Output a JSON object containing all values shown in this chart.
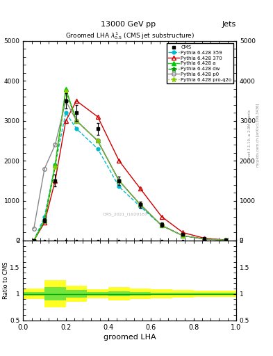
{
  "title_top": "13000 GeV pp",
  "title_right": "Jets",
  "plot_title": "Groomed LHA $\\lambda^{1}_{0.5}$ (CMS jet substructure)",
  "xlabel": "groomed LHA",
  "watermark": "CMS_2021_I1920187",
  "xbins": [
    0.0,
    0.1,
    0.2,
    0.3,
    0.4,
    0.5,
    0.6,
    0.7,
    0.8,
    0.9,
    1.0
  ],
  "cms_x": [
    0.05,
    0.1,
    0.15,
    0.2,
    0.25,
    0.35,
    0.45,
    0.55,
    0.65,
    0.75,
    0.85,
    0.95
  ],
  "cms_y": [
    0.0,
    500,
    1500,
    3500,
    3200,
    2800,
    1500,
    900,
    400,
    150,
    50,
    20
  ],
  "cms_yerr": [
    0.0,
    50,
    150,
    200,
    200,
    150,
    100,
    80,
    50,
    20,
    10,
    5
  ],
  "p359_y": [
    0.0,
    600,
    1900,
    3200,
    2800,
    2300,
    1350,
    850,
    380,
    120,
    40,
    10
  ],
  "p370_y": [
    0.0,
    450,
    1500,
    3000,
    3500,
    3100,
    2000,
    1300,
    600,
    200,
    60,
    15
  ],
  "pa_y": [
    0.0,
    500,
    1900,
    3800,
    3000,
    2500,
    1500,
    900,
    380,
    120,
    40,
    10
  ],
  "pdw_y": [
    0.0,
    500,
    1850,
    3750,
    3000,
    2500,
    1500,
    900,
    380,
    120,
    40,
    10
  ],
  "pp0_y": [
    300,
    1800,
    2400,
    3500,
    3000,
    2500,
    1500,
    900,
    380,
    120,
    40,
    10
  ],
  "pproq2o_y": [
    0.0,
    500,
    1850,
    3750,
    3000,
    2500,
    1500,
    900,
    380,
    120,
    40,
    10
  ],
  "ylim": [
    0,
    5000
  ],
  "yticks": [
    0,
    1000,
    2000,
    3000,
    4000,
    5000
  ],
  "ytick_labels": [
    "0",
    "1000",
    "2000",
    "3000",
    "4000",
    "5000"
  ],
  "ratio_ylim": [
    0.5,
    2.0
  ],
  "ratio_yticks": [
    0.5,
    1.0,
    1.5,
    2.0
  ],
  "ratio_ytick_labels": [
    "0.5",
    "1",
    "1.5",
    "2"
  ],
  "colors": {
    "cms": "#000000",
    "p359": "#00bbcc",
    "p370": "#cc0000",
    "pa": "#00cc00",
    "pdw": "#009900",
    "pp0": "#888888",
    "pproq2o": "#88cc00"
  },
  "yellow_lo": [
    0.9,
    0.75,
    0.85,
    0.92,
    0.88,
    0.9,
    0.92,
    0.93,
    0.94,
    0.94,
    0.94,
    0.94
  ],
  "yellow_hi": [
    1.1,
    1.25,
    1.15,
    1.08,
    1.12,
    1.1,
    1.08,
    1.07,
    1.06,
    1.06,
    1.06,
    1.06
  ],
  "green_lo": [
    0.97,
    0.88,
    0.93,
    0.97,
    0.95,
    0.97,
    0.98,
    0.98,
    0.98,
    0.98,
    0.98,
    0.98
  ],
  "green_hi": [
    1.03,
    1.12,
    1.07,
    1.03,
    1.05,
    1.03,
    1.02,
    1.02,
    1.02,
    1.02,
    1.02,
    1.02
  ],
  "right_label": "mcplots.cern.ch [arXiv:1306.3436]",
  "right_label2": "Rivet 3.1.10, ≥ 2.9M events"
}
